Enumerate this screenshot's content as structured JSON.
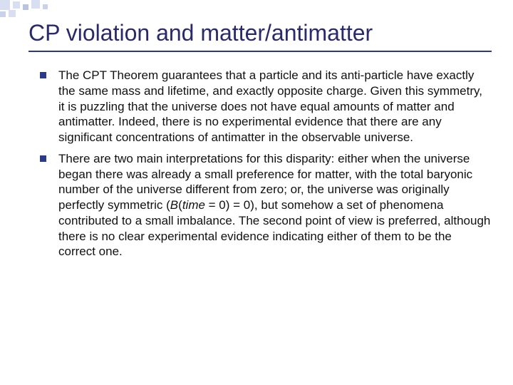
{
  "slide": {
    "title": "CP violation and matter/antimatter",
    "bullets": [
      "The CPT Theorem guarantees that a particle and its anti-particle have exactly the same mass and lifetime, and exactly opposite charge. Given this symmetry, it is puzzling that the universe does not have equal amounts of matter and antimatter. Indeed, there is no experimental evidence that there are any significant concentrations of antimatter in the observable universe.",
      "There are two main interpretations for this disparity: either when the universe began there was already a small preference for matter, with the total baryonic number of the universe different from zero; or, the universe was originally perfectly symmetric (B(time = 0) = 0), but somehow a set of phenomena contributed to a small imbalance. The second point of view is preferred, although there is no clear experimental evidence indicating either of them to be the correct one."
    ],
    "title_color": "#2a2a6a",
    "title_fontsize": 32,
    "body_fontsize": 17,
    "bullet_color": "#2a3a8a",
    "underline_color": "#2a3a8a",
    "corner_square_color": "#d7dff0",
    "background_color": "#ffffff"
  }
}
